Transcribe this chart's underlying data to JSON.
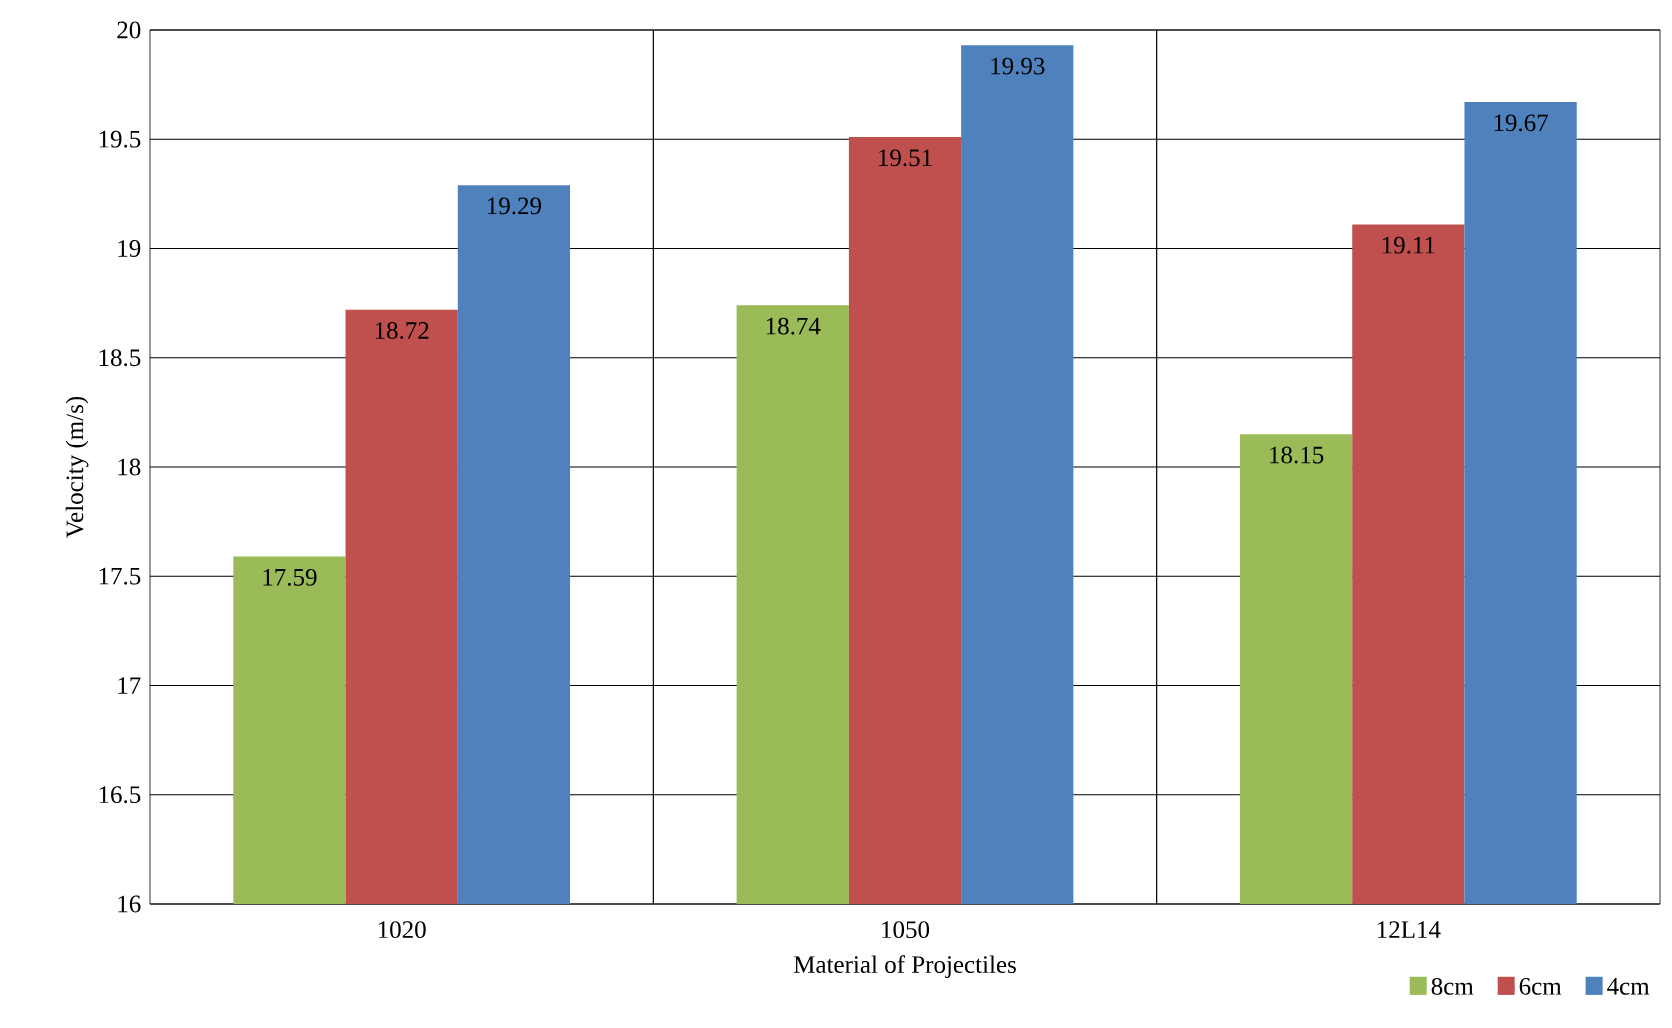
{
  "chart_data": {
    "type": "bar",
    "xlabel": "Material of Projectiles",
    "ylabel": "Velocity (m/s)",
    "categories": [
      "1020",
      "1050",
      "12L14"
    ],
    "series": [
      {
        "name": "8cm",
        "color": "#9bbb59",
        "values": [
          17.59,
          18.74,
          18.15
        ]
      },
      {
        "name": "6cm",
        "color": "#c0504d",
        "values": [
          18.72,
          19.51,
          19.11
        ]
      },
      {
        "name": "4cm",
        "color": "#4f81bd",
        "values": [
          19.29,
          19.93,
          19.67
        ]
      }
    ],
    "ylim": [
      16,
      20
    ],
    "yticks": [
      16,
      16.5,
      17,
      17.5,
      18,
      18.5,
      19,
      19.5,
      20
    ],
    "grid": true,
    "legend": "bottom right",
    "data_labels": true
  }
}
